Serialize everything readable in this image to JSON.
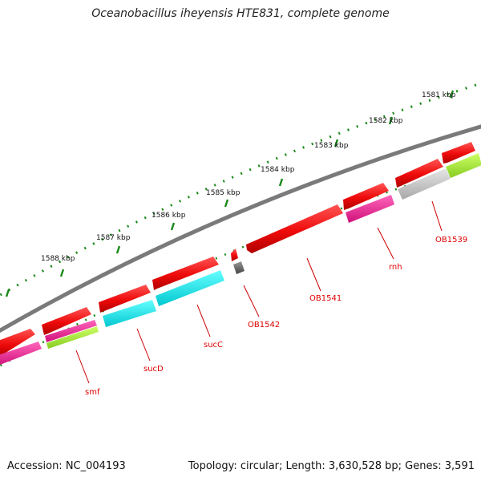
{
  "title": "Oceanobacillus iheyensis HTE831, complete genome",
  "footer": {
    "accession": "Accession: NC_004193",
    "stats": "Topology: circular; Length: 3,630,528 bp; Genes: 3,591"
  },
  "colors": {
    "backbone": "#7a7a7a",
    "tick": "#1a8a1a",
    "forward_gene": "#ee1111",
    "label": "#dd0000",
    "leader": "#cc0000"
  },
  "kbp_labels": [
    "1581 kbp",
    "1582 kbp",
    "1583 kbp",
    "1584 kbp",
    "1585 kbp",
    "1586 kbp",
    "1587 kbp",
    "1588 kbp"
  ],
  "gene_labels": [
    "OB1539",
    "rnh",
    "OB1541",
    "OB1542",
    "sucC",
    "sucD",
    "smf"
  ]
}
